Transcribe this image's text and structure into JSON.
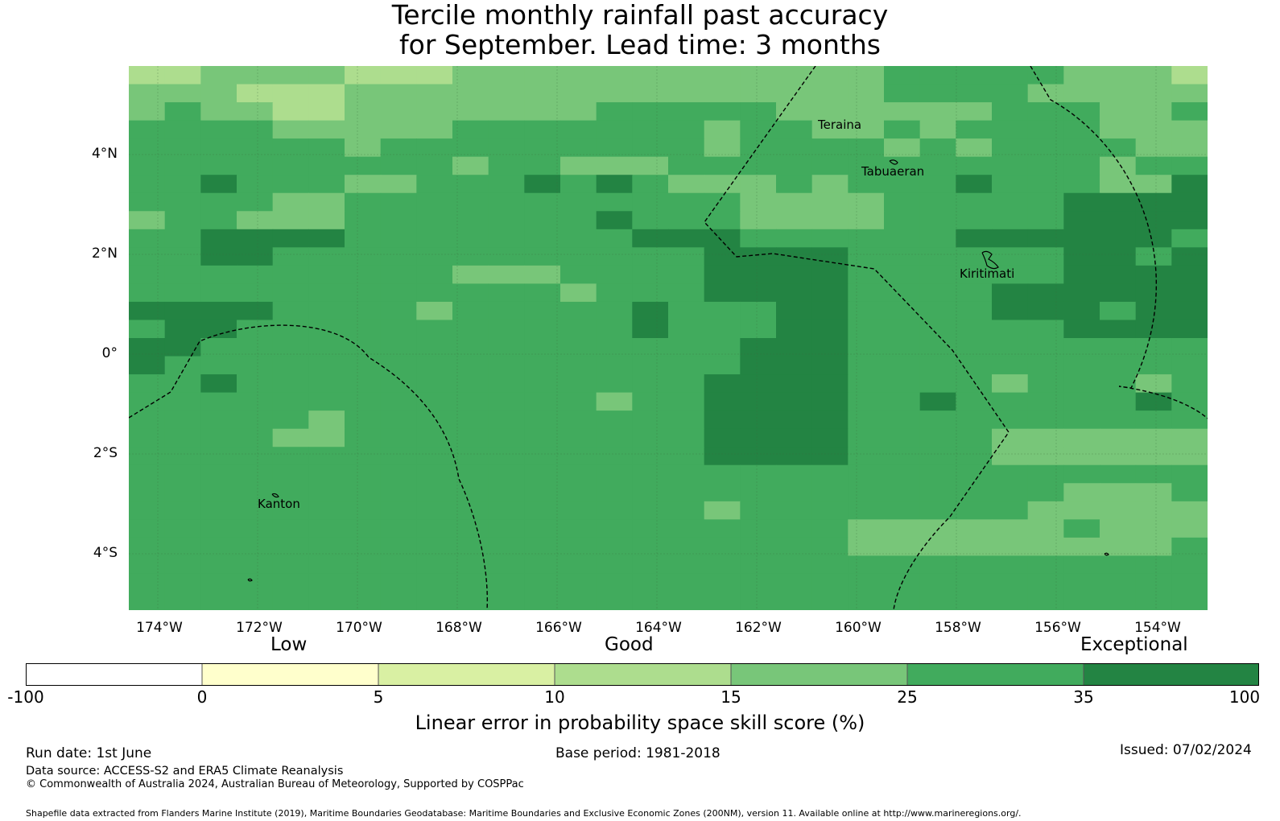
{
  "title": {
    "line1": "Tercile monthly rainfall past accuracy",
    "line2": "for September. Lead time: 3 months"
  },
  "map": {
    "lat_labels": [
      "4°N",
      "2°N",
      "0°",
      "2°S",
      "4°S"
    ],
    "lon_labels": [
      "174°W",
      "172°W",
      "170°W",
      "168°W",
      "166°W",
      "164°W",
      "162°W",
      "160°W",
      "158°W",
      "156°W",
      "154°W"
    ],
    "places": [
      "Teraina",
      "Tabuaeran",
      "Kiritimati",
      "Kanton"
    ],
    "grid": [
      "334444333444444444444555554443",
      "444333444444444444444555544444",
      "454433444444455555444444555445",
      "555544444555555545544545555444",
      "555555455555555545555454555544",
      "555555555455444555555555555455",
      "556555445556565444545556555446",
      "555544555555555554444555556666",
      "455444555555565554444555556666",
      "556666555555556665555556666665",
      "556655555555555566665555556656",
      "555555555444555566665555556666",
      "555555555555455566665555666666",
      "666655554555556555665555666566",
      "566555555555556555665555556666",
      "665555555555555556665555555555",
      "655555555555555556665555555555",
      "556555555555555566665555455545",
      "555555555555545566665565555565",
      "555554555555555566665555555555",
      "555544555555555566665555444444",
      "555555555555555566665555444444",
      "555555555555555555555555555555",
      "555555555555555555555555554445",
      "555555555555555545555555544444",
      "555555555555555555554444445444",
      "555555555555555555554444444445",
      "555555555555555555555555555555",
      "555555555555555555555555555555",
      "555555555555555555555555555555"
    ],
    "colors": [
      "#ffffff",
      "#ffffcc",
      "#d9f0a3",
      "#addd8e",
      "#78c679",
      "#41ab5d",
      "#238443"
    ]
  },
  "colorbar": {
    "categories": [
      "Low",
      "Good",
      "Exceptional"
    ],
    "ticks": [
      "-100",
      "0",
      "5",
      "10",
      "15",
      "25",
      "35",
      "100"
    ],
    "label": "Linear error in probability space skill score (%)"
  },
  "footer": {
    "run_date": "Run date: 1st June",
    "base_period": "Base period: 1981-2018",
    "issued": "Issued: 07/02/2024",
    "data_source": "Data source: ACCESS-S2 and ERA5 Climate Reanalysis",
    "copyright": "© Commonwealth of Australia 2024, Australian Bureau of Meteorology, Supported by COSPPac",
    "shapefile": "Shapefile data extracted from Flanders Marine Institute (2019), Maritime Boundaries Geodatabase: Maritime Boundaries and Exclusive Economic Zones (200NM), version 11. Available online at http://www.marineregions.org/."
  }
}
